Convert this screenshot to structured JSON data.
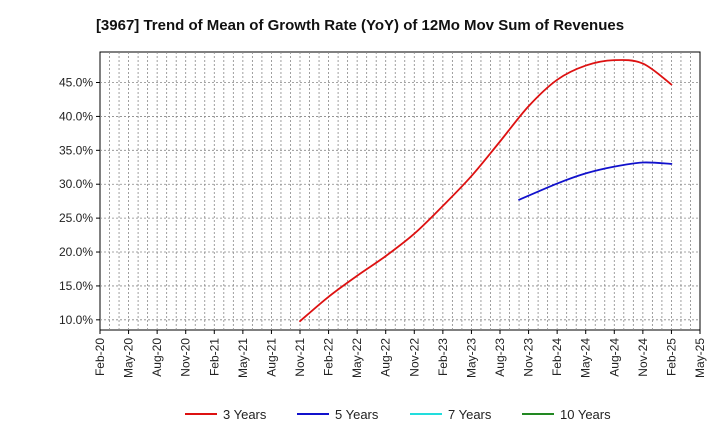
{
  "chart_data": {
    "type": "line",
    "title": "[3967]  Trend of Mean of Growth Rate (YoY) of 12Mo Mov Sum of Revenues",
    "xlabel": "",
    "ylabel": "",
    "ylim": [
      8.5,
      49.5
    ],
    "yticks": [
      10.0,
      15.0,
      20.0,
      25.0,
      30.0,
      35.0,
      40.0,
      45.0
    ],
    "ytick_labels": [
      "10.0%",
      "15.0%",
      "20.0%",
      "25.0%",
      "30.0%",
      "35.0%",
      "40.0%",
      "45.0%"
    ],
    "xticks": [
      "Feb-20",
      "May-20",
      "Aug-20",
      "Nov-20",
      "Feb-21",
      "May-21",
      "Aug-21",
      "Nov-21",
      "Feb-22",
      "May-22",
      "Aug-22",
      "Nov-22",
      "Feb-23",
      "May-23",
      "Aug-23",
      "Nov-23",
      "Feb-24",
      "May-24",
      "Aug-24",
      "Nov-24",
      "Feb-25",
      "May-25"
    ],
    "grid": true,
    "legend_position": "bottom",
    "series": [
      {
        "name": "3 Years",
        "color": "#dd1111",
        "points": [
          [
            "Nov-21",
            9.8
          ],
          [
            "Feb-22",
            13.4
          ],
          [
            "May-22",
            16.5
          ],
          [
            "Aug-22",
            19.4
          ],
          [
            "Nov-22",
            22.7
          ],
          [
            "Feb-23",
            26.8
          ],
          [
            "May-23",
            31.2
          ],
          [
            "Aug-23",
            36.3
          ],
          [
            "Nov-23",
            41.5
          ],
          [
            "Feb-24",
            45.4
          ],
          [
            "May-24",
            47.5
          ],
          [
            "Aug-24",
            48.3
          ],
          [
            "Nov-24",
            47.8
          ],
          [
            "Feb-25",
            44.7
          ]
        ]
      },
      {
        "name": "5 Years",
        "color": "#1111cc",
        "points": [
          [
            "Oct-23",
            27.7
          ],
          [
            "Feb-24",
            30.1
          ],
          [
            "May-24",
            31.6
          ],
          [
            "Aug-24",
            32.6
          ],
          [
            "Nov-24",
            33.2
          ],
          [
            "Feb-25",
            33.0
          ]
        ]
      },
      {
        "name": "7 Years",
        "color": "#22dddd",
        "points": []
      },
      {
        "name": "10 Years",
        "color": "#228822",
        "points": []
      }
    ]
  }
}
